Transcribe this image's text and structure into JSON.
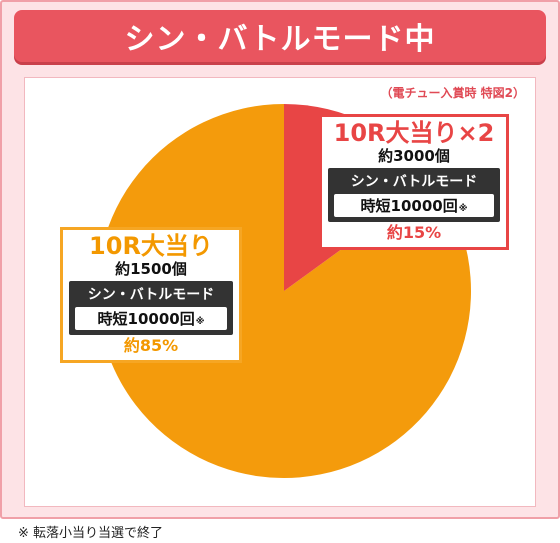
{
  "title": "シン・バトルモード中",
  "source_note": "（電チュー入賞時 特図2）",
  "footnote": "※ 転落小当り当選で終了",
  "colors": {
    "title_bg": "#e9555f",
    "slice_big": "#f49b0c",
    "slice_small": "#e84545"
  },
  "chart_data": {
    "type": "pie",
    "title": "シン・バトルモード中",
    "slices": [
      {
        "label": "10R大当り",
        "count": "約1500個",
        "mode": "シン・バトルモード",
        "jitan": "時短10000回",
        "jitan_mark": "※",
        "percent_label": "約85%",
        "value": 85,
        "color": "#f49b0c"
      },
      {
        "label": "10R大当り×2",
        "count": "約3000個",
        "mode": "シン・バトルモード",
        "jitan": "時短10000回",
        "jitan_mark": "※",
        "percent_label": "約15%",
        "value": 15,
        "color": "#e84545"
      }
    ]
  }
}
